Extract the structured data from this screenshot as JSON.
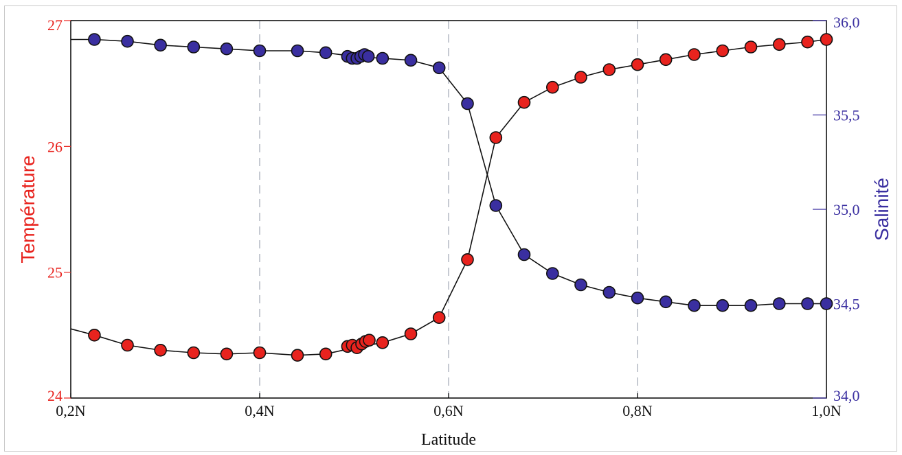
{
  "chart_data": {
    "type": "line",
    "xlabel": "Latitude",
    "x_ticks": [
      {
        "value": 0.2,
        "label": "0,2N"
      },
      {
        "value": 0.4,
        "label": "0,4N"
      },
      {
        "value": 0.6,
        "label": "0,6N"
      },
      {
        "value": 0.8,
        "label": "0,8N"
      },
      {
        "value": 1.0,
        "label": "1,0N"
      }
    ],
    "xlim": [
      0.2,
      1.0
    ],
    "grid_x": true,
    "y_left": {
      "label": "Température",
      "color": "#e8231e",
      "ylim": [
        24,
        27
      ],
      "ticks": [
        {
          "value": 24,
          "label": "24"
        },
        {
          "value": 25,
          "label": "25"
        },
        {
          "value": 26,
          "label": "26"
        },
        {
          "value": 27,
          "label": "27"
        }
      ]
    },
    "y_right": {
      "label": "Salinité",
      "color": "#3a2fa0",
      "ylim": [
        34.0,
        36.0
      ],
      "ticks": [
        {
          "value": 34.0,
          "label": "34,0"
        },
        {
          "value": 34.5,
          "label": "34,5"
        },
        {
          "value": 35.0,
          "label": "35,0"
        },
        {
          "value": 35.5,
          "label": "35,5"
        },
        {
          "value": 36.0,
          "label": "36,0"
        }
      ]
    },
    "series": [
      {
        "axis": "left",
        "color": "#e8231e",
        "line_points": [
          [
            0.2,
            24.55
          ],
          [
            0.225,
            24.5
          ],
          [
            0.26,
            24.42
          ],
          [
            0.295,
            24.38
          ],
          [
            0.33,
            24.36
          ],
          [
            0.365,
            24.35
          ],
          [
            0.4,
            24.36
          ],
          [
            0.44,
            24.34
          ],
          [
            0.47,
            24.35
          ],
          [
            0.5,
            24.4
          ],
          [
            0.53,
            24.44
          ],
          [
            0.56,
            24.51
          ],
          [
            0.59,
            24.64
          ],
          [
            0.62,
            25.1
          ],
          [
            0.65,
            26.07
          ],
          [
            0.68,
            26.35
          ],
          [
            0.71,
            26.47
          ],
          [
            0.74,
            26.55
          ],
          [
            0.77,
            26.61
          ],
          [
            0.8,
            26.65
          ],
          [
            0.83,
            26.69
          ],
          [
            0.86,
            26.73
          ],
          [
            0.89,
            26.76
          ],
          [
            0.92,
            26.79
          ],
          [
            0.95,
            26.81
          ],
          [
            0.98,
            26.83
          ],
          [
            1.0,
            26.85
          ]
        ],
        "markers": [
          [
            0.225,
            24.5
          ],
          [
            0.26,
            24.42
          ],
          [
            0.295,
            24.38
          ],
          [
            0.33,
            24.36
          ],
          [
            0.365,
            24.35
          ],
          [
            0.4,
            24.36
          ],
          [
            0.44,
            24.34
          ],
          [
            0.47,
            24.35
          ],
          [
            0.493,
            24.41
          ],
          [
            0.498,
            24.42
          ],
          [
            0.503,
            24.4
          ],
          [
            0.508,
            24.43
          ],
          [
            0.512,
            24.45
          ],
          [
            0.516,
            24.46
          ],
          [
            0.53,
            24.44
          ],
          [
            0.56,
            24.51
          ],
          [
            0.59,
            24.64
          ],
          [
            0.62,
            25.1
          ],
          [
            0.65,
            26.07
          ],
          [
            0.68,
            26.35
          ],
          [
            0.71,
            26.47
          ],
          [
            0.74,
            26.55
          ],
          [
            0.77,
            26.61
          ],
          [
            0.8,
            26.65
          ],
          [
            0.83,
            26.69
          ],
          [
            0.86,
            26.73
          ],
          [
            0.89,
            26.76
          ],
          [
            0.92,
            26.79
          ],
          [
            0.95,
            26.81
          ],
          [
            0.98,
            26.83
          ],
          [
            1.0,
            26.85
          ]
        ]
      },
      {
        "axis": "right",
        "color": "#3a2fa0",
        "line_points": [
          [
            0.2,
            35.9
          ],
          [
            0.225,
            35.9
          ],
          [
            0.26,
            35.89
          ],
          [
            0.295,
            35.87
          ],
          [
            0.33,
            35.86
          ],
          [
            0.365,
            35.85
          ],
          [
            0.4,
            35.84
          ],
          [
            0.44,
            35.84
          ],
          [
            0.47,
            35.83
          ],
          [
            0.5,
            35.81
          ],
          [
            0.53,
            35.8
          ],
          [
            0.56,
            35.79
          ],
          [
            0.59,
            35.75
          ],
          [
            0.62,
            35.56
          ],
          [
            0.65,
            35.02
          ],
          [
            0.68,
            34.76
          ],
          [
            0.71,
            34.66
          ],
          [
            0.74,
            34.6
          ],
          [
            0.77,
            34.56
          ],
          [
            0.8,
            34.53
          ],
          [
            0.83,
            34.51
          ],
          [
            0.86,
            34.49
          ],
          [
            0.89,
            34.49
          ],
          [
            0.92,
            34.49
          ],
          [
            0.95,
            34.5
          ],
          [
            0.98,
            34.5
          ],
          [
            1.0,
            34.5
          ]
        ],
        "markers": [
          [
            0.225,
            35.9
          ],
          [
            0.26,
            35.89
          ],
          [
            0.295,
            35.87
          ],
          [
            0.33,
            35.86
          ],
          [
            0.365,
            35.85
          ],
          [
            0.4,
            35.84
          ],
          [
            0.44,
            35.84
          ],
          [
            0.47,
            35.83
          ],
          [
            0.493,
            35.81
          ],
          [
            0.498,
            35.8
          ],
          [
            0.503,
            35.8
          ],
          [
            0.507,
            35.81
          ],
          [
            0.511,
            35.82
          ],
          [
            0.515,
            35.81
          ],
          [
            0.53,
            35.8
          ],
          [
            0.56,
            35.79
          ],
          [
            0.59,
            35.75
          ],
          [
            0.62,
            35.56
          ],
          [
            0.65,
            35.02
          ],
          [
            0.68,
            34.76
          ],
          [
            0.71,
            34.66
          ],
          [
            0.74,
            34.6
          ],
          [
            0.77,
            34.56
          ],
          [
            0.8,
            34.53
          ],
          [
            0.83,
            34.51
          ],
          [
            0.86,
            34.49
          ],
          [
            0.89,
            34.49
          ],
          [
            0.92,
            34.49
          ],
          [
            0.95,
            34.5
          ],
          [
            0.98,
            34.5
          ],
          [
            1.0,
            34.5
          ]
        ]
      }
    ]
  }
}
